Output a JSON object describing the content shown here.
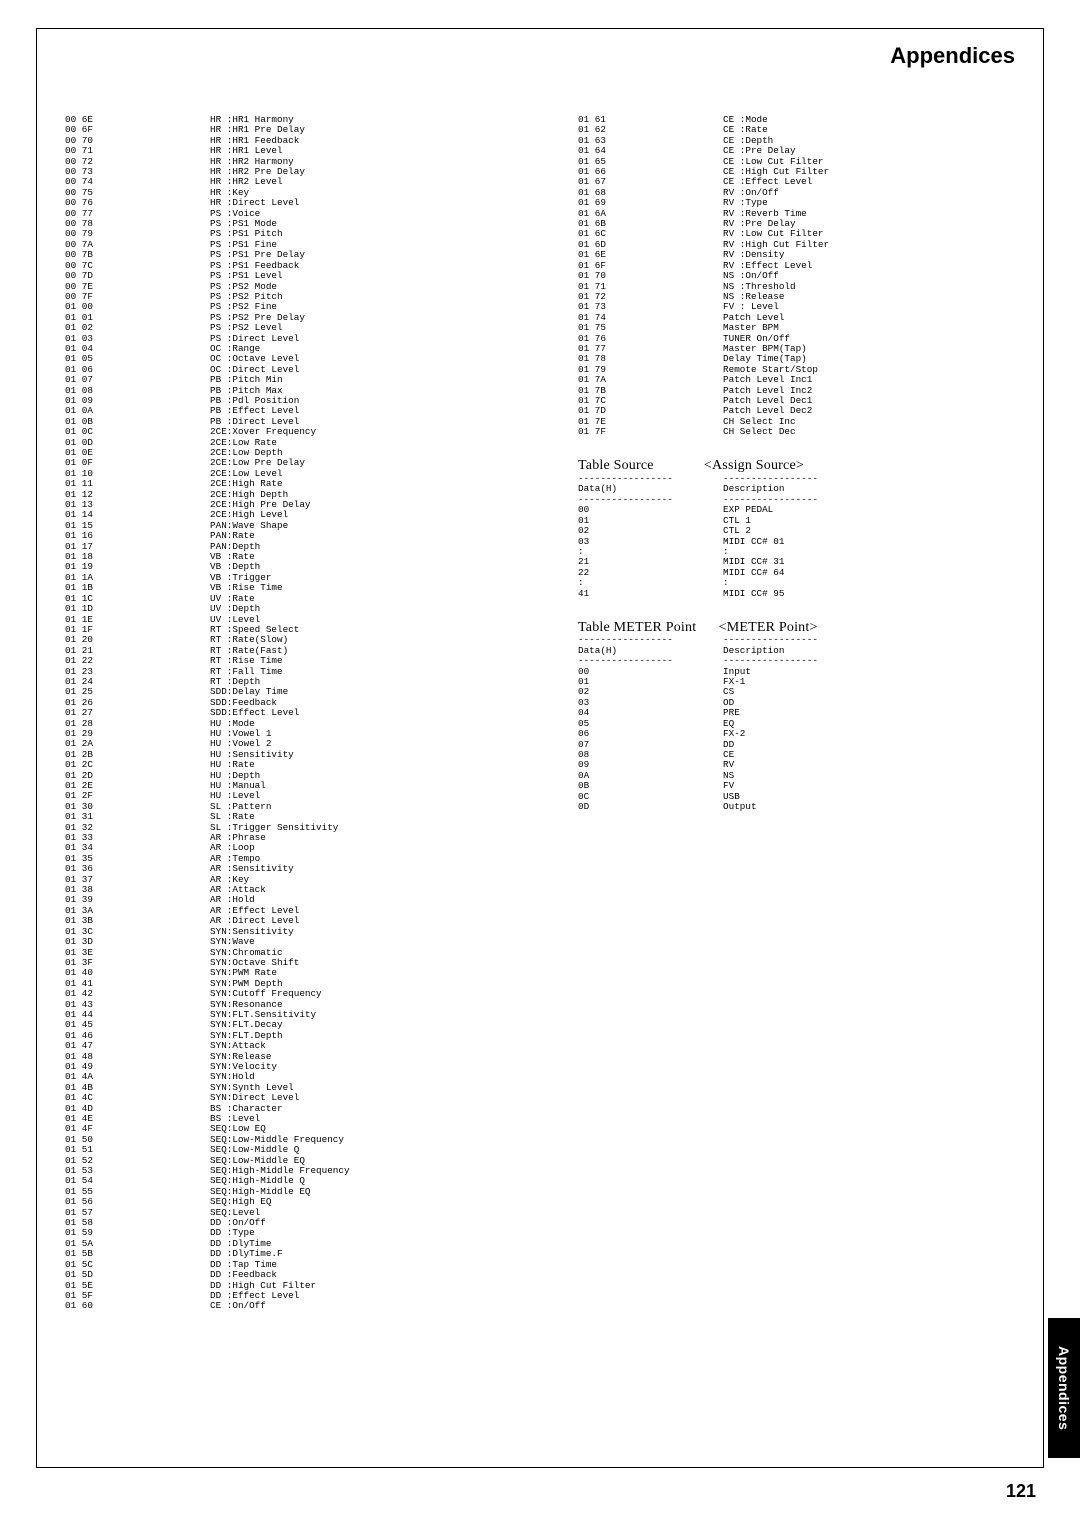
{
  "header": "Appendices",
  "sideTab": "Appendices",
  "pageNum": "121",
  "left": [
    [
      "00 6E",
      "HR :HR1 Harmony"
    ],
    [
      "00 6F",
      "HR :HR1 Pre Delay"
    ],
    [
      "00 70",
      "HR :HR1 Feedback"
    ],
    [
      "00 71",
      "HR :HR1 Level"
    ],
    [
      "00 72",
      "HR :HR2 Harmony"
    ],
    [
      "00 73",
      "HR :HR2 Pre Delay"
    ],
    [
      "00 74",
      "HR :HR2 Level"
    ],
    [
      "00 75",
      "HR :Key"
    ],
    [
      "00 76",
      "HR :Direct Level"
    ],
    [
      "00 77",
      "PS :Voice"
    ],
    [
      "00 78",
      "PS :PS1 Mode"
    ],
    [
      "00 79",
      "PS :PS1 Pitch"
    ],
    [
      "00 7A",
      "PS :PS1 Fine"
    ],
    [
      "00 7B",
      "PS :PS1 Pre Delay"
    ],
    [
      "00 7C",
      "PS :PS1 Feedback"
    ],
    [
      "00 7D",
      "PS :PS1 Level"
    ],
    [
      "00 7E",
      "PS :PS2 Mode"
    ],
    [
      "00 7F",
      "PS :PS2 Pitch"
    ],
    [
      "01 00",
      "PS :PS2 Fine"
    ],
    [
      "01 01",
      "PS :PS2 Pre Delay"
    ],
    [
      "01 02",
      "PS :PS2 Level"
    ],
    [
      "01 03",
      "PS :Direct Level"
    ],
    [
      "01 04",
      "OC :Range"
    ],
    [
      "01 05",
      "OC :Octave Level"
    ],
    [
      "01 06",
      "OC :Direct Level"
    ],
    [
      "01 07",
      "PB :Pitch Min"
    ],
    [
      "01 08",
      "PB :Pitch Max"
    ],
    [
      "01 09",
      "PB :Pdl Position"
    ],
    [
      "01 0A",
      "PB :Effect Level"
    ],
    [
      "01 0B",
      "PB :Direct Level"
    ],
    [
      "01 0C",
      "2CE:Xover Frequency"
    ],
    [
      "01 0D",
      "2CE:Low Rate"
    ],
    [
      "01 0E",
      "2CE:Low Depth"
    ],
    [
      "01 0F",
      "2CE:Low Pre Delay"
    ],
    [
      "01 10",
      "2CE:Low Level"
    ],
    [
      "01 11",
      "2CE:High Rate"
    ],
    [
      "01 12",
      "2CE:High Depth"
    ],
    [
      "01 13",
      "2CE:High Pre Delay"
    ],
    [
      "01 14",
      "2CE:High Level"
    ],
    [
      "01 15",
      "PAN:Wave Shape"
    ],
    [
      "01 16",
      "PAN:Rate"
    ],
    [
      "01 17",
      "PAN:Depth"
    ],
    [
      "01 18",
      "VB :Rate"
    ],
    [
      "01 19",
      "VB :Depth"
    ],
    [
      "01 1A",
      "VB :Trigger"
    ],
    [
      "01 1B",
      "VB :Rise Time"
    ],
    [
      "01 1C",
      "UV :Rate"
    ],
    [
      "01 1D",
      "UV :Depth"
    ],
    [
      "01 1E",
      "UV :Level"
    ],
    [
      "01 1F",
      "RT :Speed Select"
    ],
    [
      "01 20",
      "RT :Rate(Slow)"
    ],
    [
      "01 21",
      "RT :Rate(Fast)"
    ],
    [
      "01 22",
      "RT :Rise Time"
    ],
    [
      "01 23",
      "RT :Fall Time"
    ],
    [
      "01 24",
      "RT :Depth"
    ],
    [
      "01 25",
      "SDD:Delay Time"
    ],
    [
      "01 26",
      "SDD:Feedback"
    ],
    [
      "01 27",
      "SDD:Effect Level"
    ],
    [
      "01 28",
      "HU :Mode"
    ],
    [
      "01 29",
      "HU :Vowel 1"
    ],
    [
      "01 2A",
      "HU :Vowel 2"
    ],
    [
      "01 2B",
      "HU :Sensitivity"
    ],
    [
      "01 2C",
      "HU :Rate"
    ],
    [
      "01 2D",
      "HU :Depth"
    ],
    [
      "01 2E",
      "HU :Manual"
    ],
    [
      "01 2F",
      "HU :Level"
    ],
    [
      "01 30",
      "SL :Pattern"
    ],
    [
      "01 31",
      "SL :Rate"
    ],
    [
      "01 32",
      "SL :Trigger Sensitivity"
    ],
    [
      "01 33",
      "AR :Phrase"
    ],
    [
      "01 34",
      "AR :Loop"
    ],
    [
      "01 35",
      "AR :Tempo"
    ],
    [
      "01 36",
      "AR :Sensitivity"
    ],
    [
      "01 37",
      "AR :Key"
    ],
    [
      "01 38",
      "AR :Attack"
    ],
    [
      "01 39",
      "AR :Hold"
    ],
    [
      "01 3A",
      "AR :Effect Level"
    ],
    [
      "01 3B",
      "AR :Direct Level"
    ],
    [
      "01 3C",
      "SYN:Sensitivity"
    ],
    [
      "01 3D",
      "SYN:Wave"
    ],
    [
      "01 3E",
      "SYN:Chromatic"
    ],
    [
      "01 3F",
      "SYN:Octave Shift"
    ],
    [
      "01 40",
      "SYN:PWM Rate"
    ],
    [
      "01 41",
      "SYN:PWM Depth"
    ],
    [
      "01 42",
      "SYN:Cutoff Frequency"
    ],
    [
      "01 43",
      "SYN:Resonance"
    ],
    [
      "01 44",
      "SYN:FLT.Sensitivity"
    ],
    [
      "01 45",
      "SYN:FLT.Decay"
    ],
    [
      "01 46",
      "SYN:FLT.Depth"
    ],
    [
      "01 47",
      "SYN:Attack"
    ],
    [
      "01 48",
      "SYN:Release"
    ],
    [
      "01 49",
      "SYN:Velocity"
    ],
    [
      "01 4A",
      "SYN:Hold"
    ],
    [
      "01 4B",
      "SYN:Synth Level"
    ],
    [
      "01 4C",
      "SYN:Direct Level"
    ],
    [
      "01 4D",
      "BS :Character"
    ],
    [
      "01 4E",
      "BS :Level"
    ],
    [
      "01 4F",
      "SEQ:Low EQ"
    ],
    [
      "01 50",
      "SEQ:Low-Middle Frequency"
    ],
    [
      "01 51",
      "SEQ:Low-Middle Q"
    ],
    [
      "01 52",
      "SEQ:Low-Middle EQ"
    ],
    [
      "01 53",
      "SEQ:High-Middle Frequency"
    ],
    [
      "01 54",
      "SEQ:High-Middle Q"
    ],
    [
      "01 55",
      "SEQ:High-Middle EQ"
    ],
    [
      "01 56",
      "SEQ:High EQ"
    ],
    [
      "01 57",
      "SEQ:Level"
    ],
    [
      "01 58",
      "DD :On/Off"
    ],
    [
      "01 59",
      "DD :Type"
    ],
    [
      "01 5A",
      "DD :DlyTime"
    ],
    [
      "01 5B",
      "DD :DlyTime.F"
    ],
    [
      "01 5C",
      "DD :Tap Time"
    ],
    [
      "01 5D",
      "DD :Feedback"
    ],
    [
      "01 5E",
      "DD :High Cut Filter"
    ],
    [
      "01 5F",
      "DD :Effect Level"
    ],
    [
      "01 60",
      "CE :On/Off"
    ]
  ],
  "rightTop": [
    [
      "01 61",
      "CE :Mode"
    ],
    [
      "01 62",
      "CE :Rate"
    ],
    [
      "01 63",
      "CE :Depth"
    ],
    [
      "01 64",
      "CE :Pre Delay"
    ],
    [
      "01 65",
      "CE :Low Cut Filter"
    ],
    [
      "01 66",
      "CE :High Cut Filter"
    ],
    [
      "01 67",
      "CE :Effect Level"
    ],
    [
      "01 68",
      "RV :On/Off"
    ],
    [
      "01 69",
      "RV :Type"
    ],
    [
      "01 6A",
      "RV :Reverb Time"
    ],
    [
      "01 6B",
      "RV :Pre Delay"
    ],
    [
      "01 6C",
      "RV :Low Cut Filter"
    ],
    [
      "01 6D",
      "RV :High Cut Filter"
    ],
    [
      "01 6E",
      "RV :Density"
    ],
    [
      "01 6F",
      "RV :Effect Level"
    ],
    [
      "01 70",
      "NS :On/Off"
    ],
    [
      "01 71",
      "NS :Threshold"
    ],
    [
      "01 72",
      "NS :Release"
    ],
    [
      "01 73",
      "FV : Level"
    ],
    [
      "01 74",
      "Patch Level"
    ],
    [
      "01 75",
      "Master BPM"
    ],
    [
      "01 76",
      "TUNER On/Off"
    ],
    [
      "01 77",
      "Master BPM(Tap)"
    ],
    [
      "01 78",
      "Delay Time(Tap)"
    ],
    [
      "01 79",
      "Remote Start/Stop"
    ],
    [
      "01 7A",
      "Patch Level Inc1"
    ],
    [
      "01 7B",
      "Patch Level Inc2"
    ],
    [
      "01 7C",
      "Patch Level Dec1"
    ],
    [
      "01 7D",
      "Patch Level Dec2"
    ],
    [
      "01 7E",
      "CH Select Inc"
    ],
    [
      "01 7F",
      "CH Select Dec"
    ]
  ],
  "tableSource": {
    "titleLeft": "Table Source",
    "titleRight": "<Assign Source>",
    "sep": "-----------------",
    "hLeft": "Data(H)",
    "hRight": "Description",
    "rows": [
      [
        "00",
        "EXP PEDAL"
      ],
      [
        "01",
        "CTL 1"
      ],
      [
        "02",
        "CTL 2"
      ],
      [
        "03",
        "MIDI CC# 01"
      ],
      [
        ":",
        ":"
      ],
      [
        "21",
        "MIDI CC# 31"
      ],
      [
        "22",
        "MIDI CC# 64"
      ],
      [
        ":",
        ":"
      ],
      [
        "41",
        "MIDI CC# 95"
      ]
    ]
  },
  "tableMeter": {
    "titleLeft": "Table METER Point",
    "titleRight": "<METER Point>",
    "sep": "-----------------",
    "hLeft": "Data(H)",
    "hRight": "Description",
    "rows": [
      [
        "00",
        "Input"
      ],
      [
        "01",
        "FX-1"
      ],
      [
        "02",
        "CS"
      ],
      [
        "03",
        "OD"
      ],
      [
        "04",
        "PRE"
      ],
      [
        "05",
        "EQ"
      ],
      [
        "06",
        "FX-2"
      ],
      [
        "07",
        "DD"
      ],
      [
        "08",
        "CE"
      ],
      [
        "09",
        "RV"
      ],
      [
        "0A",
        "NS"
      ],
      [
        "0B",
        "FV"
      ],
      [
        "0C",
        "USB"
      ],
      [
        "0D",
        "Output"
      ]
    ]
  }
}
